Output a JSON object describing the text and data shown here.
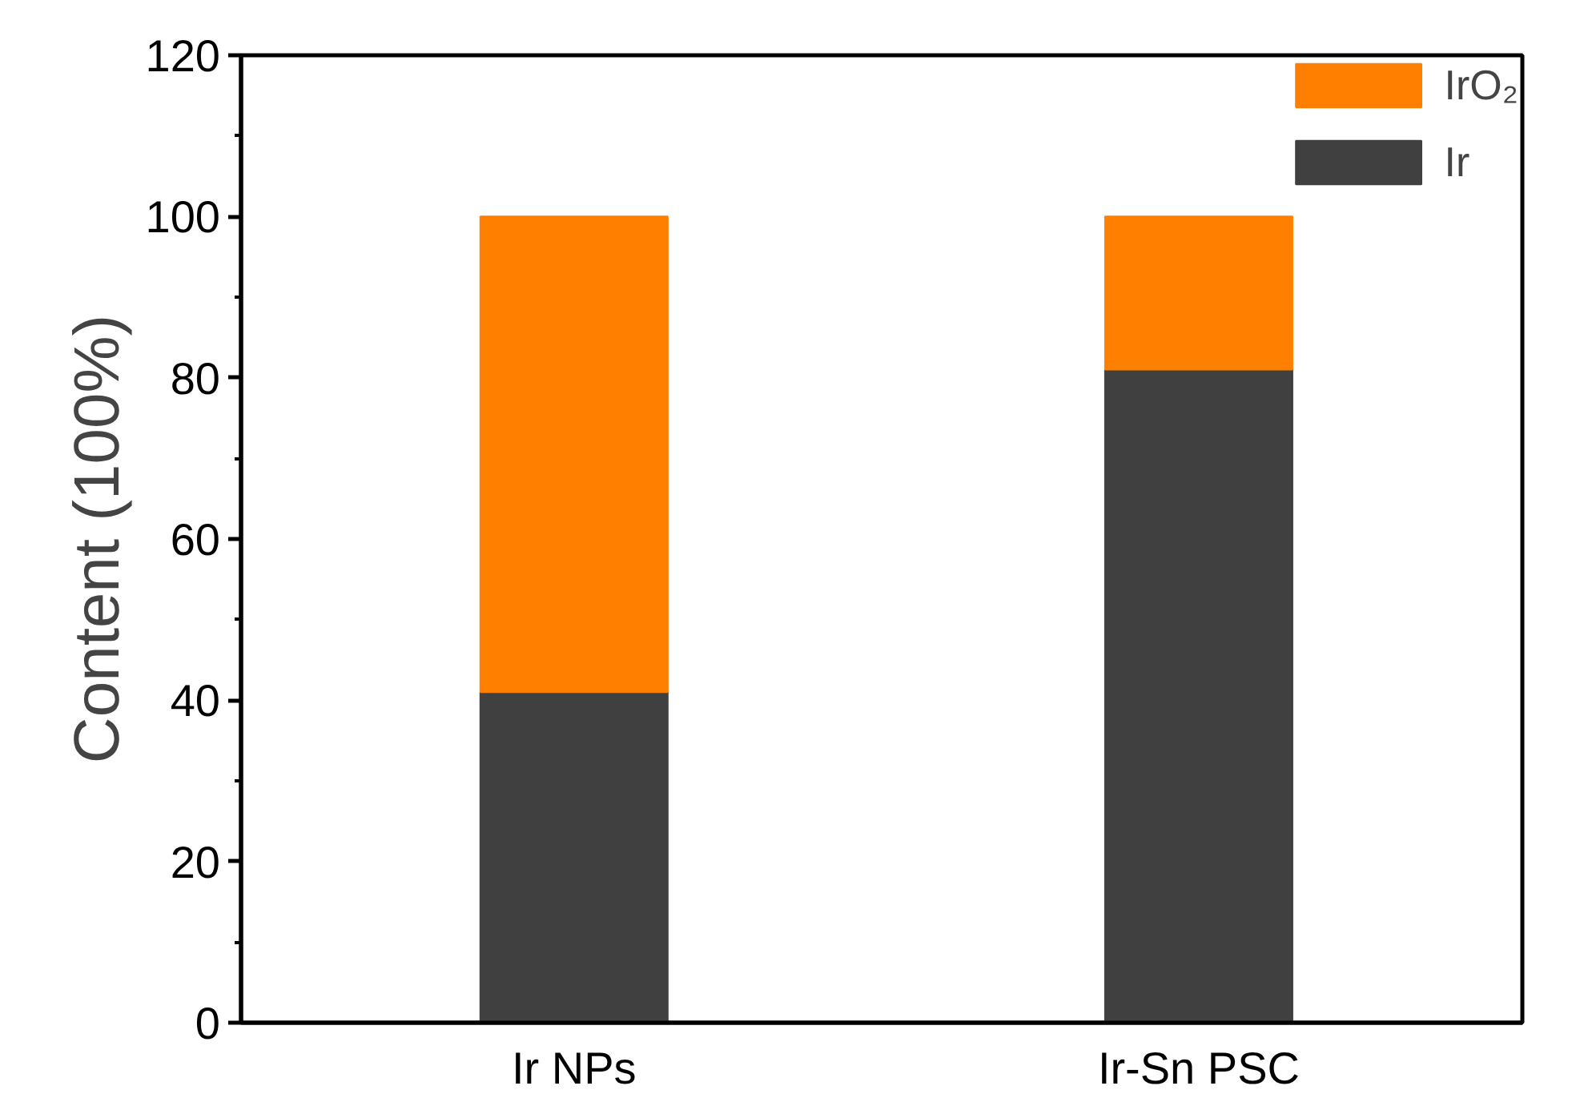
{
  "chart_data": {
    "type": "bar",
    "stacked": true,
    "categories": [
      "Ir NPs",
      "Ir-Sn PSC"
    ],
    "ylabel": "Content (100%)",
    "ylim": [
      0,
      120
    ],
    "yticks": [
      0,
      20,
      40,
      60,
      80,
      100,
      120
    ],
    "grid": false,
    "legend": "top right",
    "series": [
      {
        "name": "Ir",
        "color": "#404040",
        "values": [
          41,
          81
        ]
      },
      {
        "name": "IrO₂",
        "color": "#ff8000",
        "values": [
          59,
          19
        ]
      }
    ]
  }
}
